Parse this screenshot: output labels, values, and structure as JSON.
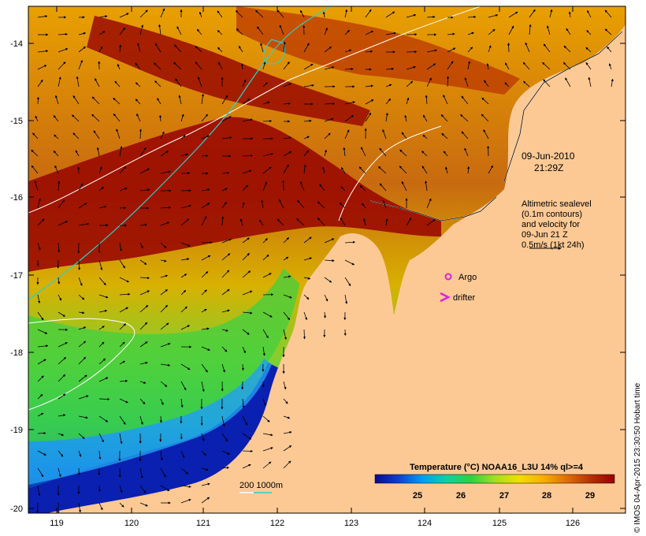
{
  "map": {
    "lon_ticks": [
      "119",
      "120",
      "121",
      "122",
      "123",
      "124",
      "125",
      "126"
    ],
    "lat_ticks": [
      "-14",
      "-15",
      "-16",
      "-17",
      "-18",
      "-19",
      "-20"
    ],
    "colors": {
      "land": "#fcc995",
      "frame": "#000000",
      "contour_200m": "#ffffff",
      "contour_1000m": "#2fd0c8",
      "argo": "#e020e0",
      "drifter": "#e020e0"
    }
  },
  "annotation": {
    "date": "09-Jun-2010",
    "time": "21:29Z",
    "altimetry_lines": [
      "Altimetric sealevel",
      "(0.1m contours)",
      "and velocity for",
      "09-Jun 21 Z",
      "0.5m/s (1kt 24h)"
    ]
  },
  "markers": {
    "argo_label": "Argo",
    "drifter_label": "drifter"
  },
  "contour_legend": {
    "label": "200  1000m"
  },
  "colorbar": {
    "title": "Temperature (°C) NOAA16_L3U 14% ql>=4",
    "ticks": [
      "25",
      "26",
      "27",
      "28",
      "29"
    ],
    "stops": [
      "#0a0a8c",
      "#1040d0",
      "#00a0f0",
      "#10d0a0",
      "#30d040",
      "#a0e020",
      "#f0e000",
      "#f8b000",
      "#e07000",
      "#b83000",
      "#9a0000"
    ]
  },
  "credit": "© IMOS 04-Apr-2015 23:30:50 Hobart time"
}
